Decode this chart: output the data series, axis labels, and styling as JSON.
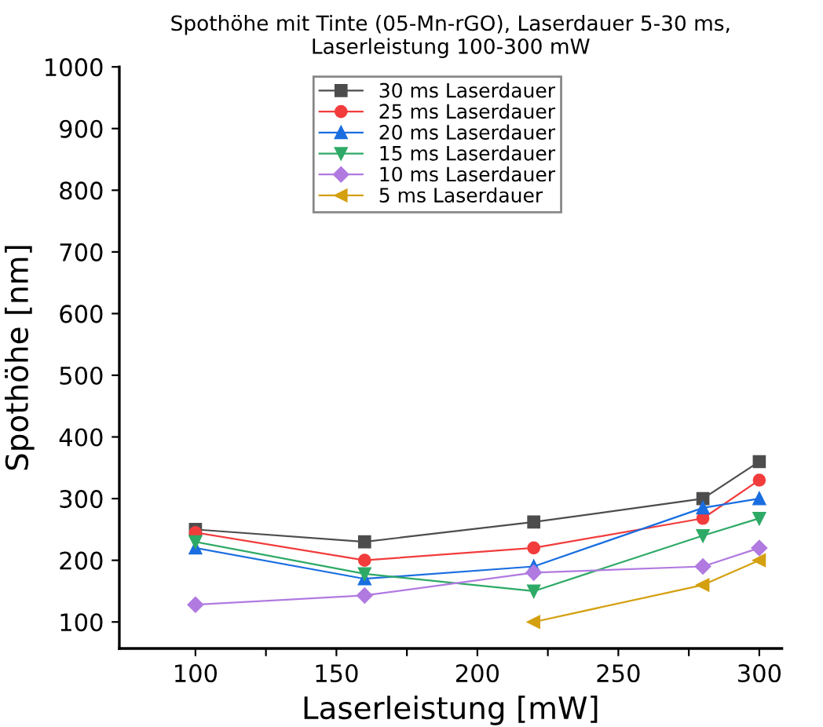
{
  "chart_data": {
    "type": "line",
    "title": "Spothöhe mit Tinte (05-Mn-rGO), Laserdauer 5-30 ms,\nLaserleistung 100-300 mW",
    "xlabel": "Laserleistung [mW]",
    "ylabel": "Spothöhe [nm]",
    "x": [
      100,
      160,
      220,
      280,
      300
    ],
    "series": [
      {
        "name": "30 ms Laserdauer",
        "color": "#4d4d4d",
        "marker": "square",
        "values": [
          250,
          230,
          262,
          300,
          360
        ]
      },
      {
        "name": "25 ms Laserdauer",
        "color": "#f23c3c",
        "marker": "circle",
        "values": [
          245,
          200,
          220,
          268,
          330
        ]
      },
      {
        "name": "20 ms Laserdauer",
        "color": "#1a6ee0",
        "marker": "triangle",
        "values": [
          220,
          170,
          190,
          285,
          300
        ]
      },
      {
        "name": "15 ms Laserdauer",
        "color": "#2eaa66",
        "marker": "triangle_down",
        "values": [
          230,
          178,
          150,
          240,
          268
        ]
      },
      {
        "name": "10 ms Laserdauer",
        "color": "#b07ae0",
        "marker": "diamond",
        "values": [
          128,
          143,
          180,
          190,
          220
        ]
      },
      {
        "name": "5 ms Laserdauer",
        "color": "#d4a010",
        "marker": "triangle_left",
        "values": [
          null,
          null,
          100,
          160,
          200
        ]
      }
    ],
    "xlim": [
      73,
      308
    ],
    "ylim": [
      57,
      1000
    ],
    "xticks": [
      100,
      {
        "value": 125,
        "label": null
      },
      150,
      {
        "value": 175,
        "label": null
      },
      200,
      {
        "value": 225,
        "label": null
      },
      250,
      {
        "value": 275,
        "label": null
      },
      300
    ],
    "yticks": [
      100,
      200,
      300,
      400,
      500,
      600,
      700,
      800,
      900,
      1000
    ],
    "legend": "top",
    "grid": false
  }
}
